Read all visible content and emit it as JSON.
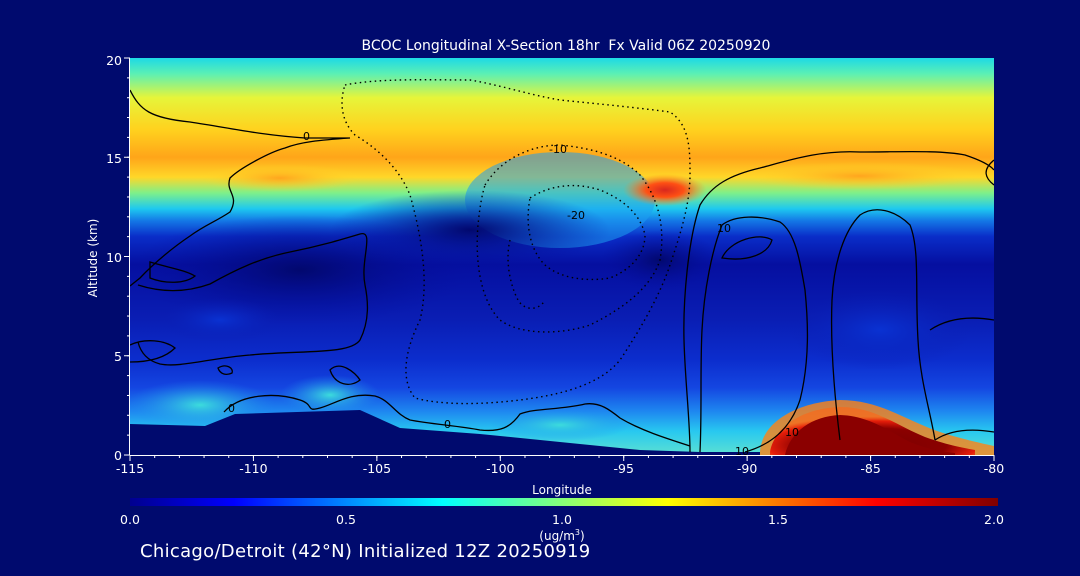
{
  "colors": {
    "background": "#000a6e",
    "text": "#ffffff",
    "contour": "#000000",
    "plume": "#8b0000"
  },
  "chart_data": {
    "type": "heatmap",
    "title": "BCOC Longitudinal X-Section 18hr  Fx Valid 06Z 20250920",
    "xlabel": "Longitude",
    "ylabel": "Altitude (km)",
    "xlim": [
      -115,
      -80
    ],
    "ylim": [
      0,
      20
    ],
    "x_ticks": [
      "-115",
      "-110",
      "-105",
      "-100",
      "-95",
      "-90",
      "-85",
      "-80"
    ],
    "y_ticks": [
      "0",
      "5",
      "10",
      "15",
      "20"
    ],
    "colorbar": {
      "range": [
        0.0,
        2.0
      ],
      "tick_labels": [
        "0.0",
        "0.5",
        "1.0",
        "1.5",
        "2.0"
      ],
      "unit_label": "(ug/m",
      "unit_superscript": "3",
      "unit_close": ")",
      "colormap": "jet"
    },
    "contour_labels": [
      "0",
      "-10",
      "-20",
      "10",
      "0",
      "0",
      "10",
      "10"
    ],
    "concentration_features": [
      {
        "lon": -108,
        "alt": 14.0,
        "value": 1.55
      },
      {
        "lon": -93.5,
        "alt": 13.5,
        "value": 1.8
      },
      {
        "lon": -84,
        "alt": 14.0,
        "value": 1.5
      },
      {
        "lon": -103,
        "alt": 10.0,
        "value": 0.15
      },
      {
        "lon": -86.5,
        "alt": 1.0,
        "value": 2.0
      },
      {
        "lon": -111,
        "alt": 2.0,
        "value": 0.8
      }
    ]
  },
  "footer": {
    "subtitle": "Chicago/Detroit (42°N) Initialized 12Z 20250919"
  }
}
